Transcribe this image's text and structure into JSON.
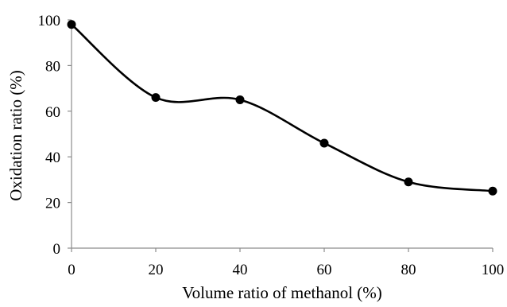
{
  "chart_data": {
    "type": "line",
    "title": "",
    "xlabel": "Volume ratio of methanol (%)",
    "ylabel": "Oxidation ratio (%)",
    "x": [
      0,
      20,
      40,
      60,
      80,
      100
    ],
    "series": [
      {
        "values": [
          98,
          66,
          65,
          46,
          29,
          25
        ]
      }
    ],
    "xlim": [
      0,
      100
    ],
    "ylim": [
      0,
      100
    ],
    "xticks": [
      0,
      20,
      40,
      60,
      80,
      100
    ],
    "yticks": [
      0,
      20,
      40,
      60,
      80,
      100
    ],
    "grid": false,
    "smooth": true,
    "marker": "circle",
    "line_color": "#000000"
  }
}
